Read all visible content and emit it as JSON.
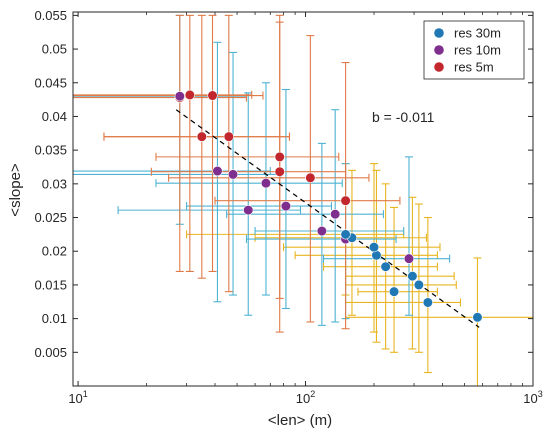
{
  "chart_data": {
    "type": "scatter",
    "xlabel": "<len> (m)",
    "ylabel": "<slope>",
    "x_scale": "log",
    "xlim": [
      9.5,
      1000
    ],
    "ylim": [
      0,
      0.0555
    ],
    "grid": false,
    "legend_position": "top-right",
    "x_ticks": [
      10,
      100,
      1000
    ],
    "x_tick_labels": [
      "10",
      "10",
      "10"
    ],
    "x_tick_exponents": [
      "1",
      "2",
      "3"
    ],
    "y_ticks": [
      0.005,
      0.01,
      0.015,
      0.02,
      0.025,
      0.03,
      0.035,
      0.04,
      0.045,
      0.05,
      0.055
    ],
    "y_tick_labels": [
      "0.005",
      "0.01",
      "0.015",
      "0.02",
      "0.025",
      "0.03",
      "0.035",
      "0.04",
      "0.045",
      "0.05",
      "0.055"
    ],
    "annotation": "b = -0.011",
    "fit_line": {
      "x": [
        27,
        580
      ],
      "y": [
        0.041,
        0.0087
      ],
      "color": "#000000",
      "style": "dashed"
    },
    "series": [
      {
        "name": "res 30m",
        "color": "#1f77b4",
        "errcolor": "#e8b520",
        "points": [
          {
            "x": 570,
            "y": 0.0102,
            "xerr": [
              150,
              1010
            ],
            "yerr": [
              0.0,
              0.019
            ]
          },
          {
            "x": 345,
            "y": 0.0124,
            "xerr": [
              150,
              480
            ],
            "yerr": [
              0.002,
              0.025
            ]
          },
          {
            "x": 245,
            "y": 0.014,
            "xerr": [
              170,
              380
            ],
            "yerr": [
              0.005,
              0.0265
            ]
          },
          {
            "x": 315,
            "y": 0.015,
            "xerr": [
              150,
              460
            ],
            "yerr": [
              0.005,
              0.027
            ]
          },
          {
            "x": 295,
            "y": 0.0163,
            "xerr": [
              150,
              450
            ],
            "yerr": [
              0.0055,
              0.028
            ]
          },
          {
            "x": 225,
            "y": 0.0177,
            "xerr": [
              120,
              380
            ],
            "yerr": [
              0.0055,
              0.03
            ]
          },
          {
            "x": 205,
            "y": 0.0194,
            "xerr": [
              90,
              380
            ],
            "yerr": [
              0.0065,
              0.032
            ]
          },
          {
            "x": 200,
            "y": 0.0206,
            "xerr": [
              80,
              390
            ],
            "yerr": [
              0.008,
              0.033
            ]
          },
          {
            "x": 160,
            "y": 0.022,
            "xerr": [
              60,
              340
            ],
            "yerr": [
              0.0105,
              0.032
            ]
          },
          {
            "x": 150,
            "y": 0.0225,
            "xerr": [
              30,
              270
            ],
            "yerr": [
              0.0135,
              0.033
            ]
          }
        ]
      },
      {
        "name": "res 10m",
        "color": "#7e2f8e",
        "errcolor": "#4eb3d3",
        "points": [
          {
            "x": 285,
            "y": 0.0189,
            "xerr": [
              120,
              430
            ],
            "yerr": [
              0.0105,
              0.034
            ]
          },
          {
            "x": 150,
            "y": 0.0218,
            "xerr": [
              55,
              250
            ],
            "yerr": [
              0.01,
              0.033
            ]
          },
          {
            "x": 118,
            "y": 0.023,
            "xerr": [
              60,
              270
            ],
            "yerr": [
              0.009,
              0.036
            ]
          },
          {
            "x": 135,
            "y": 0.0255,
            "xerr": [
              45,
              220
            ],
            "yerr": [
              0.0095,
              0.041
            ]
          },
          {
            "x": 82,
            "y": 0.0267,
            "xerr": [
              30,
              130
            ],
            "yerr": [
              0.0115,
              0.044
            ]
          },
          {
            "x": 56,
            "y": 0.0261,
            "xerr": [
              15,
              95
            ],
            "yerr": [
              0.0105,
              0.0435
            ]
          },
          {
            "x": 67,
            "y": 0.0301,
            "xerr": [
              22,
              145
            ],
            "yerr": [
              0.0135,
              0.045
            ]
          },
          {
            "x": 48,
            "y": 0.0314,
            "xerr": [
              8,
              78
            ],
            "yerr": [
              0.0135,
              0.0495
            ]
          },
          {
            "x": 41,
            "y": 0.0319,
            "xerr": [
              7,
              70
            ],
            "yerr": [
              0.0125,
              0.051
            ]
          },
          {
            "x": 28,
            "y": 0.043,
            "xerr": [
              9,
              55
            ],
            "yerr": [
              0.024,
              0.055
            ]
          }
        ]
      },
      {
        "name": "res 5m",
        "color": "#c1272d",
        "errcolor": "#e07b49",
        "points": [
          {
            "x": 150,
            "y": 0.0275,
            "xerr": [
              40,
              260
            ],
            "yerr": [
              0.0085,
              0.048
            ]
          },
          {
            "x": 105,
            "y": 0.0309,
            "xerr": [
              25,
              190
            ],
            "yerr": [
              0.0095,
              0.052
            ]
          },
          {
            "x": 77,
            "y": 0.0318,
            "xerr": [
              21,
              150
            ],
            "yerr": [
              0.008,
              0.054
            ]
          },
          {
            "x": 77,
            "y": 0.034,
            "xerr": [
              22,
              140
            ],
            "yerr": [
              0.013,
              0.055
            ]
          },
          {
            "x": 46,
            "y": 0.037,
            "xerr": [
              13,
              85
            ],
            "yerr": [
              0.014,
              0.055
            ]
          },
          {
            "x": 35,
            "y": 0.037,
            "xerr": [
              13,
              85
            ],
            "yerr": [
              0.016,
              0.055
            ]
          },
          {
            "x": 39,
            "y": 0.0431,
            "xerr": [
              7,
              65
            ],
            "yerr": [
              0.017,
              0.055
            ]
          },
          {
            "x": 31,
            "y": 0.0432,
            "xerr": [
              7,
              58
            ],
            "yerr": [
              0.017,
              0.055
            ]
          },
          {
            "x": 28,
            "y": 0.0428,
            "xerr": [
              7,
              55
            ],
            "yerr": [
              0.017,
              0.055
            ]
          }
        ]
      }
    ]
  }
}
